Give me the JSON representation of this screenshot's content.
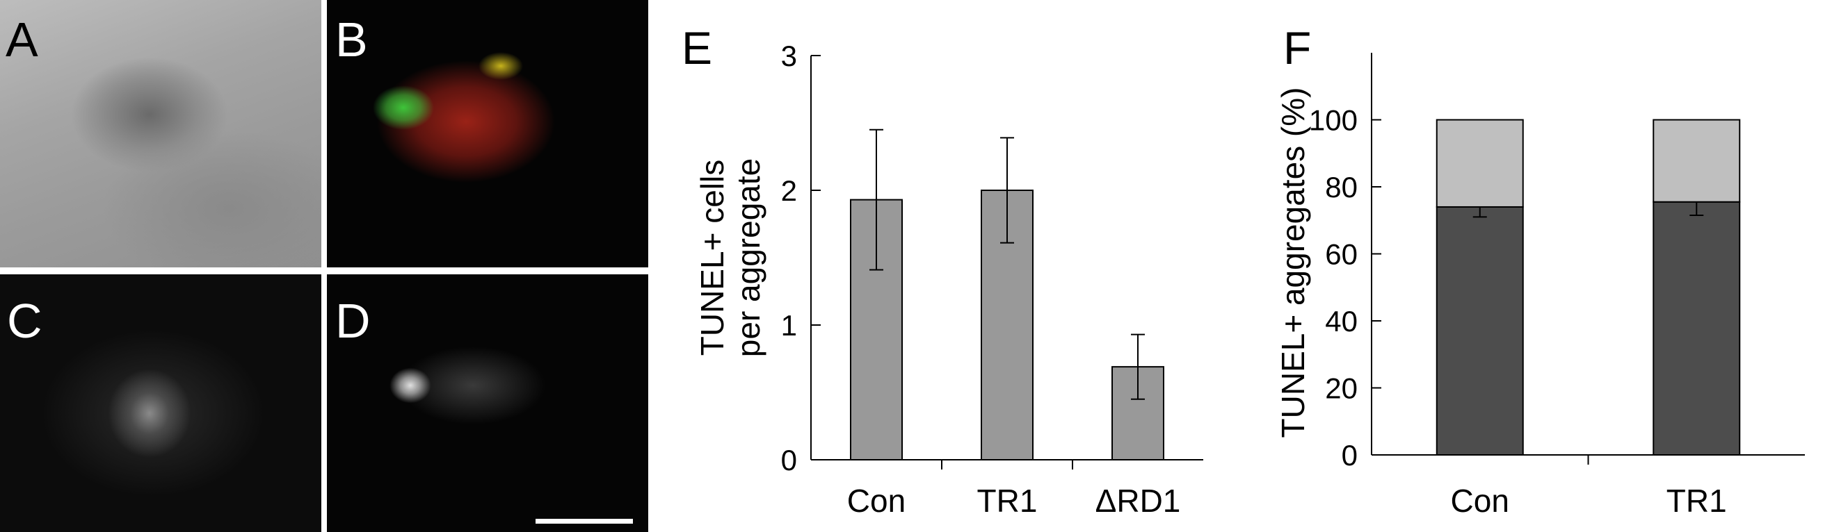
{
  "panels": {
    "A": {
      "label": "A"
    },
    "B": {
      "label": "B"
    },
    "C": {
      "label": "C"
    },
    "D": {
      "label": "D"
    }
  },
  "colors": {
    "bar_gray": "#999999",
    "stack_dark": "#4d4d4d",
    "stack_light": "#bfbfbf",
    "fluor_green": "#3ec43a",
    "fluor_red": "#b0231a"
  },
  "chart_data": [
    {
      "panel_label": "E",
      "type": "bar",
      "categories": [
        "Con",
        "TR1",
        "ΔRD1"
      ],
      "values": [
        1.93,
        2.0,
        0.69
      ],
      "errors": [
        0.52,
        0.39,
        0.24
      ],
      "ylabel_lines": [
        "TUNEL+ cells",
        "per aggregate"
      ],
      "ylim": [
        0,
        3
      ],
      "yticks": [
        0,
        1,
        2,
        3
      ],
      "grid": false
    },
    {
      "panel_label": "F",
      "type": "bar",
      "stacked": true,
      "categories": [
        "Con",
        "TR1"
      ],
      "series": [
        {
          "values": [
            74,
            75.5
          ],
          "errors": [
            3,
            4
          ],
          "color": "#4d4d4d"
        },
        {
          "values": [
            26,
            24.5
          ],
          "color": "#bfbfbf"
        }
      ],
      "ylabel": "TUNEL+ aggregates (%)",
      "ylim": [
        0,
        120
      ],
      "yticks": [
        0,
        20,
        40,
        60,
        80,
        100
      ],
      "grid": false
    }
  ]
}
